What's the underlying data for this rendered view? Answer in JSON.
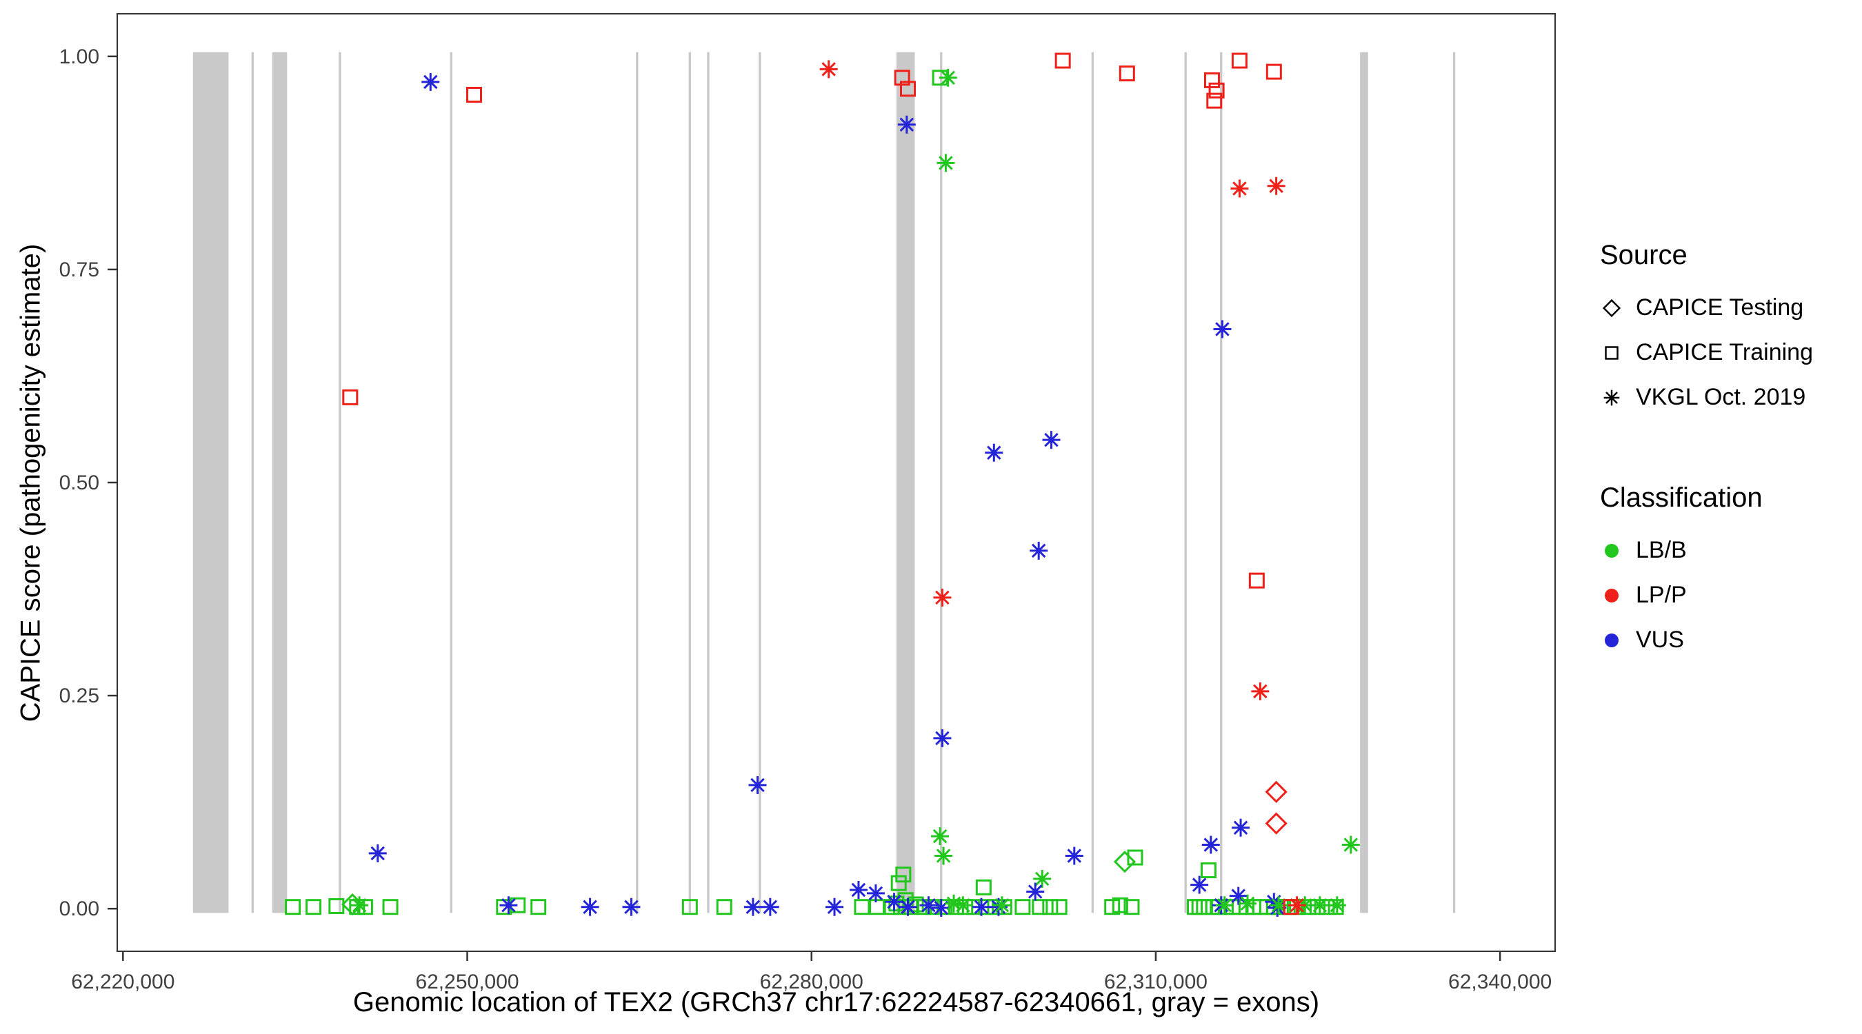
{
  "figure": {
    "x_axis": {
      "title": "Genomic location of TEX2 (GRCh37 chr17:62224587-62340661, gray = exons)",
      "tick_values": [
        62220000,
        62250000,
        62280000,
        62310000,
        62340000
      ],
      "tick_labels": [
        "62,220,000",
        "62,250,000",
        "62,280,000",
        "62,310,000",
        "62,340,000"
      ]
    },
    "y_axis": {
      "title": "CAPICE score (pathogenicity estimate)",
      "tick_values": [
        0,
        0.25,
        0.5,
        0.75,
        1
      ],
      "tick_labels": [
        "0.00",
        "0.25",
        "0.50",
        "0.75",
        "1.00"
      ]
    }
  },
  "legend": {
    "source": {
      "title": "Source",
      "items": [
        {
          "label": "CAPICE Testing",
          "shape": "diamond"
        },
        {
          "label": "CAPICE Training",
          "shape": "square"
        },
        {
          "label": "VKGL Oct. 2019",
          "shape": "asterisk"
        }
      ]
    },
    "classification": {
      "title": "Classification",
      "items": [
        {
          "label": "LB/B",
          "color": "#22c71e"
        },
        {
          "label": "LP/P",
          "color": "#ee2019"
        },
        {
          "label": "VUS",
          "color": "#2424d9"
        }
      ]
    }
  },
  "colors": {
    "LB/B": "#22c71e",
    "LP/P": "#ee2019",
    "VUS": "#2424d9",
    "exon": "#c9c9c9",
    "axis": "#333333"
  },
  "chart_data": {
    "type": "scatter",
    "title": "",
    "xlabel": "Genomic location of TEX2 (GRCh37 chr17:62224587-62340661, gray = exons)",
    "ylabel": "CAPICE score (pathogenicity estimate)",
    "x_domain": [
      62219500,
      62344800
    ],
    "y_domain": [
      -0.05,
      1.05
    ],
    "x_ticks": [
      62220000,
      62250000,
      62280000,
      62310000,
      62340000
    ],
    "y_ticks": [
      0,
      0.25,
      0.5,
      0.75,
      1
    ],
    "grid": false,
    "legend_position": "right",
    "exon_note": "gray vertical bars mark exon regions, drawn from y=0 to y=1",
    "exons": [
      [
        62226100,
        62229200
      ],
      [
        62231200,
        62231400
      ],
      [
        62233000,
        62234300
      ],
      [
        62238800,
        62239000
      ],
      [
        62248500,
        62248700
      ],
      [
        62264700,
        62264900
      ],
      [
        62269300,
        62269500
      ],
      [
        62270900,
        62271100
      ],
      [
        62275400,
        62275600
      ],
      [
        62287400,
        62289000
      ],
      [
        62291200,
        62291400
      ],
      [
        62304400,
        62304600
      ],
      [
        62312500,
        62312700
      ],
      [
        62315600,
        62315800
      ],
      [
        62327800,
        62328500
      ],
      [
        62335900,
        62336100
      ]
    ],
    "point_format": [
      "x_genomic_position",
      "capice_score",
      "source",
      "classification"
    ],
    "points": [
      [
        62246800,
        0.97,
        "vkgl",
        "VUS"
      ],
      [
        62250600,
        0.955,
        "training",
        "LP/P"
      ],
      [
        62281500,
        0.985,
        "vkgl",
        "LP/P"
      ],
      [
        62287900,
        0.975,
        "training",
        "LP/P"
      ],
      [
        62288400,
        0.962,
        "training",
        "LP/P"
      ],
      [
        62288300,
        0.92,
        "vkgl",
        "VUS"
      ],
      [
        62291200,
        0.975,
        "training",
        "LB/B"
      ],
      [
        62291900,
        0.975,
        "vkgl",
        "LB/B"
      ],
      [
        62291700,
        0.875,
        "vkgl",
        "LB/B"
      ],
      [
        62301900,
        0.995,
        "training",
        "LP/P"
      ],
      [
        62307500,
        0.98,
        "training",
        "LP/P"
      ],
      [
        62314900,
        0.972,
        "training",
        "LP/P"
      ],
      [
        62315300,
        0.96,
        "training",
        "LP/P"
      ],
      [
        62315100,
        0.948,
        "training",
        "LP/P"
      ],
      [
        62317300,
        0.995,
        "training",
        "LP/P"
      ],
      [
        62320300,
        0.982,
        "training",
        "LP/P"
      ],
      [
        62317300,
        0.845,
        "vkgl",
        "LP/P"
      ],
      [
        62320500,
        0.848,
        "vkgl",
        "LP/P"
      ],
      [
        62315800,
        0.68,
        "vkgl",
        "VUS"
      ],
      [
        62239800,
        0.6,
        "training",
        "LP/P"
      ],
      [
        62295900,
        0.535,
        "vkgl",
        "VUS"
      ],
      [
        62300900,
        0.55,
        "vkgl",
        "VUS"
      ],
      [
        62299800,
        0.42,
        "vkgl",
        "VUS"
      ],
      [
        62291400,
        0.365,
        "vkgl",
        "LP/P"
      ],
      [
        62318800,
        0.385,
        "training",
        "LP/P"
      ],
      [
        62319100,
        0.255,
        "vkgl",
        "LP/P"
      ],
      [
        62291400,
        0.2,
        "vkgl",
        "VUS"
      ],
      [
        62275300,
        0.145,
        "vkgl",
        "VUS"
      ],
      [
        62320500,
        0.137,
        "testing",
        "LP/P"
      ],
      [
        62320500,
        0.1,
        "testing",
        "LP/P"
      ],
      [
        62242200,
        0.065,
        "vkgl",
        "VUS"
      ],
      [
        62302900,
        0.062,
        "vkgl",
        "VUS"
      ],
      [
        62314800,
        0.075,
        "vkgl",
        "VUS"
      ],
      [
        62317400,
        0.095,
        "vkgl",
        "VUS"
      ],
      [
        62327000,
        0.075,
        "vkgl",
        "LB/B"
      ],
      [
        62291200,
        0.085,
        "vkgl",
        "LB/B"
      ],
      [
        62291500,
        0.062,
        "vkgl",
        "LB/B"
      ],
      [
        62307300,
        0.055,
        "testing",
        "LB/B"
      ],
      [
        62308200,
        0.06,
        "training",
        "LB/B"
      ],
      [
        62288000,
        0.04,
        "training",
        "LB/B"
      ],
      [
        62314600,
        0.045,
        "training",
        "LB/B"
      ],
      [
        62300100,
        0.035,
        "vkgl",
        "LB/B"
      ],
      [
        62295000,
        0.025,
        "training",
        "LB/B"
      ],
      [
        62240000,
        0.005,
        "testing",
        "LB/B"
      ],
      [
        62234800,
        0.002,
        "training",
        "LB/B"
      ],
      [
        62236600,
        0.002,
        "training",
        "LB/B"
      ],
      [
        62238600,
        0.003,
        "training",
        "LB/B"
      ],
      [
        62240400,
        0.002,
        "training",
        "LB/B"
      ],
      [
        62241100,
        0.002,
        "training",
        "LB/B"
      ],
      [
        62243300,
        0.002,
        "training",
        "LB/B"
      ],
      [
        62253200,
        0.002,
        "training",
        "LB/B"
      ],
      [
        62254400,
        0.004,
        "training",
        "LB/B"
      ],
      [
        62256200,
        0.002,
        "training",
        "LB/B"
      ],
      [
        62269400,
        0.002,
        "training",
        "LB/B"
      ],
      [
        62272400,
        0.002,
        "training",
        "LB/B"
      ],
      [
        62284400,
        0.002,
        "training",
        "LB/B"
      ],
      [
        62285700,
        0.002,
        "training",
        "LB/B"
      ],
      [
        62287000,
        0.002,
        "training",
        "LB/B"
      ],
      [
        62287400,
        0.006,
        "training",
        "LB/B"
      ],
      [
        62287600,
        0.03,
        "training",
        "LB/B"
      ],
      [
        62287800,
        0.002,
        "training",
        "LB/B"
      ],
      [
        62288200,
        0.01,
        "training",
        "LB/B"
      ],
      [
        62288700,
        0.002,
        "training",
        "LB/B"
      ],
      [
        62289100,
        0.005,
        "training",
        "LB/B"
      ],
      [
        62289800,
        0.002,
        "training",
        "LB/B"
      ],
      [
        62290600,
        0.002,
        "training",
        "LB/B"
      ],
      [
        62291600,
        0.002,
        "training",
        "LB/B"
      ],
      [
        62292600,
        0.002,
        "training",
        "LB/B"
      ],
      [
        62293400,
        0.002,
        "training",
        "LB/B"
      ],
      [
        62294200,
        0.002,
        "training",
        "LB/B"
      ],
      [
        62295200,
        0.002,
        "training",
        "LB/B"
      ],
      [
        62296000,
        0.002,
        "training",
        "LB/B"
      ],
      [
        62296800,
        0.002,
        "training",
        "LB/B"
      ],
      [
        62298400,
        0.002,
        "training",
        "LB/B"
      ],
      [
        62299900,
        0.002,
        "training",
        "LB/B"
      ],
      [
        62300800,
        0.002,
        "training",
        "LB/B"
      ],
      [
        62301600,
        0.002,
        "training",
        "LB/B"
      ],
      [
        62306200,
        0.002,
        "training",
        "LB/B"
      ],
      [
        62306900,
        0.004,
        "training",
        "LB/B"
      ],
      [
        62307900,
        0.002,
        "training",
        "LB/B"
      ],
      [
        62313400,
        0.002,
        "training",
        "LB/B"
      ],
      [
        62313800,
        0.002,
        "training",
        "LB/B"
      ],
      [
        62314200,
        0.002,
        "training",
        "LB/B"
      ],
      [
        62315000,
        0.002,
        "training",
        "LB/B"
      ],
      [
        62315500,
        0.002,
        "training",
        "LB/B"
      ],
      [
        62316100,
        0.002,
        "training",
        "LB/B"
      ],
      [
        62316700,
        0.002,
        "training",
        "LB/B"
      ],
      [
        62317300,
        0.002,
        "training",
        "LB/B"
      ],
      [
        62317900,
        0.002,
        "training",
        "LB/B"
      ],
      [
        62318500,
        0.002,
        "training",
        "LB/B"
      ],
      [
        62319100,
        0.002,
        "training",
        "LB/B"
      ],
      [
        62319700,
        0.002,
        "training",
        "LB/B"
      ],
      [
        62320300,
        0.002,
        "training",
        "LB/B"
      ],
      [
        62320900,
        0.002,
        "training",
        "LB/B"
      ],
      [
        62321500,
        0.002,
        "training",
        "LB/B"
      ],
      [
        62322300,
        0.002,
        "training",
        "LB/B"
      ],
      [
        62323300,
        0.002,
        "training",
        "LB/B"
      ],
      [
        62324100,
        0.002,
        "training",
        "LB/B"
      ],
      [
        62324900,
        0.002,
        "training",
        "LB/B"
      ],
      [
        62325700,
        0.002,
        "training",
        "LB/B"
      ],
      [
        62253600,
        0.004,
        "vkgl",
        "VUS"
      ],
      [
        62260700,
        0.002,
        "vkgl",
        "VUS"
      ],
      [
        62264300,
        0.002,
        "vkgl",
        "VUS"
      ],
      [
        62274900,
        0.002,
        "vkgl",
        "VUS"
      ],
      [
        62276400,
        0.002,
        "vkgl",
        "VUS"
      ],
      [
        62282000,
        0.002,
        "vkgl",
        "VUS"
      ],
      [
        62284100,
        0.022,
        "vkgl",
        "VUS"
      ],
      [
        62285600,
        0.018,
        "vkgl",
        "VUS"
      ],
      [
        62287200,
        0.008,
        "vkgl",
        "VUS"
      ],
      [
        62288400,
        0.002,
        "vkgl",
        "VUS"
      ],
      [
        62290200,
        0.004,
        "vkgl",
        "VUS"
      ],
      [
        62291300,
        0.001,
        "vkgl",
        "VUS"
      ],
      [
        62294800,
        0.002,
        "vkgl",
        "VUS"
      ],
      [
        62296300,
        0.002,
        "vkgl",
        "VUS"
      ],
      [
        62299500,
        0.02,
        "vkgl",
        "VUS"
      ],
      [
        62313800,
        0.028,
        "vkgl",
        "VUS"
      ],
      [
        62315700,
        0.004,
        "vkgl",
        "VUS"
      ],
      [
        62317200,
        0.015,
        "vkgl",
        "VUS"
      ],
      [
        62320300,
        0.008,
        "vkgl",
        "VUS"
      ],
      [
        62320600,
        0.001,
        "vkgl",
        "VUS"
      ],
      [
        62240600,
        0.004,
        "vkgl",
        "LB/B"
      ],
      [
        62292400,
        0.006,
        "vkgl",
        "LB/B"
      ],
      [
        62293200,
        0.004,
        "vkgl",
        "LB/B"
      ],
      [
        62296600,
        0.004,
        "vkgl",
        "LB/B"
      ],
      [
        62316000,
        0.004,
        "vkgl",
        "LB/B"
      ],
      [
        62318000,
        0.006,
        "vkgl",
        "LB/B"
      ],
      [
        62320700,
        0.004,
        "vkgl",
        "LB/B"
      ],
      [
        62323000,
        0.004,
        "vkgl",
        "LB/B"
      ],
      [
        62324300,
        0.004,
        "vkgl",
        "LB/B"
      ],
      [
        62325800,
        0.004,
        "vkgl",
        "LB/B"
      ],
      [
        62322300,
        0.004,
        "vkgl",
        "LP/P"
      ],
      [
        62321800,
        0.002,
        "training",
        "LP/P"
      ]
    ]
  }
}
